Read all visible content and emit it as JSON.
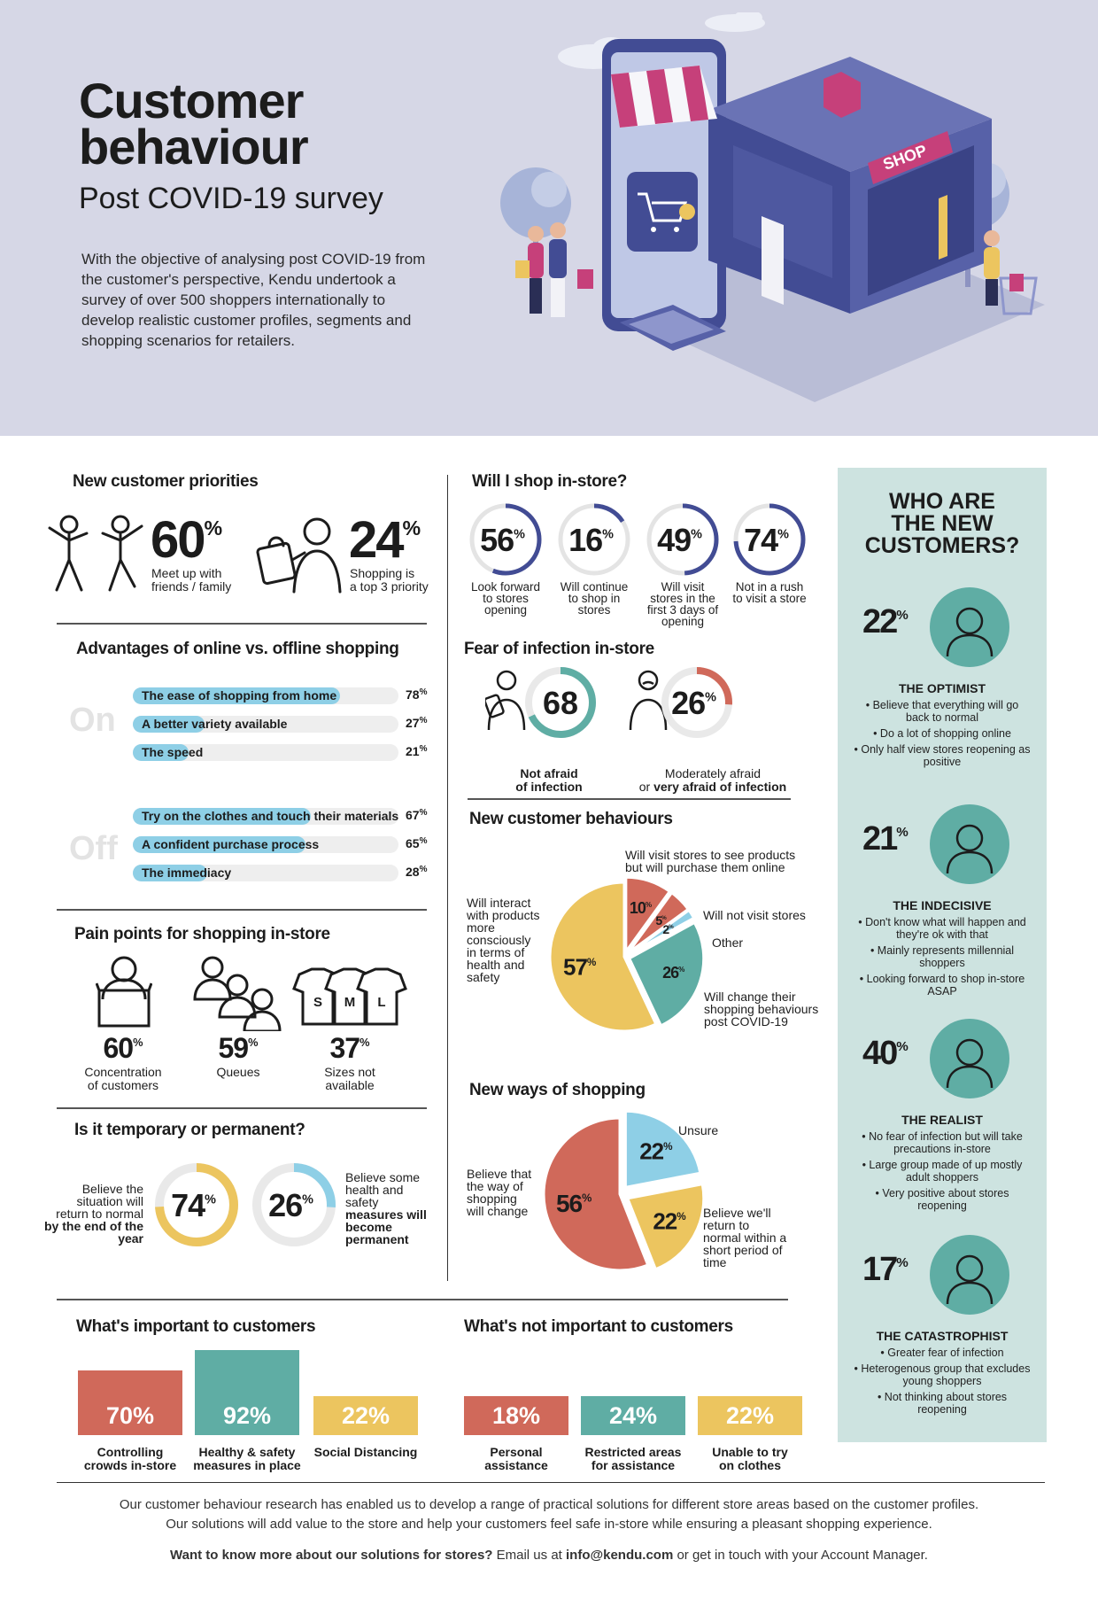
{
  "header": {
    "title_line1": "Customer",
    "title_line2": "behaviour",
    "subtitle": "Post COVID-19 survey",
    "intro": "With the objective of analysing post COVID-19 from the customer's perspective, Kendu undertook a survey of over 500 shoppers internationally to develop realistic customer profiles, segments and shopping scenarios for retailers.",
    "shop_sign": "SHOP"
  },
  "priorities": {
    "title": "New customer priorities",
    "items": [
      {
        "value": "60",
        "label1": "Meet up with",
        "label2": "friends / family"
      },
      {
        "value": "24",
        "label1": "Shopping is",
        "label2": "a top 3 priority"
      }
    ]
  },
  "advantages": {
    "title": "Advantages of online vs. offline shopping",
    "on_label": "On",
    "off_label": "Off",
    "online": [
      {
        "label": "The ease of shopping from home",
        "value": 78
      },
      {
        "label": "A better variety available",
        "value": 27
      },
      {
        "label": "The speed",
        "value": 21
      }
    ],
    "offline": [
      {
        "label": "Try on the clothes and touch their materials",
        "value": 67
      },
      {
        "label": "A confident purchase process",
        "value": 65
      },
      {
        "label": "The immediacy",
        "value": 28
      }
    ]
  },
  "pain": {
    "title": "Pain points for shopping in-store",
    "items": [
      {
        "value": "60",
        "label1": "Concentration",
        "label2": "of customers"
      },
      {
        "value": "59",
        "label1": "Queues",
        "label2": ""
      },
      {
        "value": "37",
        "label1": "Sizes not",
        "label2": "available"
      }
    ],
    "sizes": [
      "S",
      "M",
      "L"
    ]
  },
  "temporary": {
    "title": "Is it temporary or permanent?",
    "left": {
      "value": 74,
      "text": [
        "Believe the",
        "situation will",
        "return to normal",
        "by the end of the",
        "year"
      ]
    },
    "right": {
      "value": 26,
      "text": [
        "Believe some",
        "health and",
        "safety",
        "measures will",
        "become",
        "permanent"
      ]
    }
  },
  "instore": {
    "title": "Will I shop in-store?",
    "items": [
      {
        "value": 56,
        "lines": [
          "Look forward",
          "to stores",
          "opening"
        ]
      },
      {
        "value": 16,
        "lines": [
          "Will continue",
          "to shop in",
          "stores"
        ]
      },
      {
        "value": 49,
        "lines": [
          "Will visit",
          "stores in the",
          "first 3 days of",
          "opening"
        ]
      },
      {
        "value": 74,
        "lines": [
          "Not in a rush",
          "to visit a store"
        ]
      }
    ]
  },
  "fear": {
    "title": "Fear of infection in-store",
    "left": {
      "value": 68,
      "line1": "Not afraid",
      "line2": "of infection"
    },
    "right": {
      "value": 26,
      "line1": "Moderately afraid",
      "line2a": "or ",
      "line2b": "very afraid of infection"
    }
  },
  "behaviours": {
    "title": "New customer behaviours",
    "labels": {
      "a": [
        "Will visit stores to see products",
        "but will purchase them online"
      ],
      "b": "Will not visit stores",
      "c": "Other",
      "d": [
        "Will change their",
        "shopping behaviours",
        "post COVID-19"
      ],
      "e": [
        "Will interact",
        "with products",
        "more",
        "consciously",
        "in terms of",
        "health and",
        "safety"
      ]
    }
  },
  "ways": {
    "title": "New ways of shopping",
    "labels": {
      "unsure": "Unsure",
      "normal": [
        "Believe we'll",
        "return to",
        "normal within a",
        "short period of",
        "time"
      ],
      "change": [
        "Believe that",
        "the way of",
        "shopping",
        "will change"
      ]
    }
  },
  "important": {
    "title": "What's important to customers",
    "items": [
      {
        "value": "70%",
        "label1": "Controlling",
        "label2": "crowds in-store"
      },
      {
        "value": "92%",
        "label1": "Healthy & safety",
        "label2": "measures in place"
      },
      {
        "value": "22%",
        "label1": "Social Distancing",
        "label2": ""
      }
    ]
  },
  "not_important": {
    "title": "What's not important to customers",
    "items": [
      {
        "value": "18%",
        "label1": "Personal",
        "label2": "assistance"
      },
      {
        "value": "24%",
        "label1": "Restricted areas",
        "label2": "for assistance"
      },
      {
        "value": "22%",
        "label1": "Unable to try",
        "label2": "on clothes"
      }
    ]
  },
  "sidebar": {
    "title": [
      "WHO ARE",
      "THE NEW",
      "CUSTOMERS?"
    ],
    "profiles": [
      {
        "pct": "22",
        "name": "THE OPTIMIST",
        "points": [
          "• Believe that everything will go back to normal",
          "• Do a lot of shopping online",
          "• Only half view stores reopening as positive"
        ]
      },
      {
        "pct": "21",
        "name": "THE INDECISIVE",
        "points": [
          "• Don't know what will happen and they're ok with that",
          "• Mainly represents millennial shoppers",
          "• Looking forward to shop in-store ASAP"
        ]
      },
      {
        "pct": "40",
        "name": "THE REALIST",
        "points": [
          "• No fear of infection but will take precautions in-store",
          "• Large group made of up mostly adult shoppers",
          "• Very positive about stores reopening"
        ]
      },
      {
        "pct": "17",
        "name": "THE CATASTROPHIST",
        "points": [
          "• Greater fear of infection",
          "• Heterogenous group that excludes young shoppers",
          "• Not thinking about stores reopening"
        ]
      }
    ]
  },
  "footer": {
    "line1": "Our customer behaviour research has enabled us to develop a range of practical solutions for different store areas based on the customer profiles.",
    "line2": "Our solutions will add value to the store and help your customers feel safe in-store while ensuring a pleasant shopping experience.",
    "cta_bold": "Want to know more about our solutions for stores?",
    "cta_mid": " Email us at ",
    "email": "info@kendu.com",
    "cta_end": " or get in touch with your Account Manager."
  },
  "colors": {
    "hero_bg": "#d6d7e6",
    "teal": "#5fada4",
    "coral": "#d0695a",
    "yellow": "#ecc55f",
    "navy": "#424c94",
    "light_blue": "#8ecfe6",
    "sidebar_bg": "#cde3e0"
  },
  "chart_data": [
    {
      "type": "bar",
      "title": "Advantages of online vs. offline shopping",
      "series": [
        {
          "name": "On",
          "categories": [
            "The ease of shopping from home",
            "A better variety available",
            "The speed"
          ],
          "values": [
            78,
            27,
            21
          ]
        },
        {
          "name": "Off",
          "categories": [
            "Try on the clothes and touch their materials",
            "A confident purchase process",
            "The immediacy"
          ],
          "values": [
            67,
            65,
            28
          ]
        }
      ]
    },
    {
      "type": "pie",
      "title": "New customer behaviours",
      "categories": [
        "Will interact with products more consciously in terms of health and safety",
        "Will change their shopping behaviours post COVID-19",
        "Will visit stores to see products but will purchase them online",
        "Will not visit stores",
        "Other"
      ],
      "values": [
        57,
        26,
        10,
        5,
        2
      ]
    },
    {
      "type": "pie",
      "title": "New ways of shopping",
      "categories": [
        "Believe that the way of shopping will change",
        "Unsure",
        "Believe we'll return to normal within a short period of time"
      ],
      "values": [
        56,
        22,
        22
      ]
    },
    {
      "type": "bar",
      "title": "What's important to customers",
      "categories": [
        "Controlling crowds in-store",
        "Healthy & safety measures in place",
        "Social Distancing"
      ],
      "values": [
        70,
        92,
        22
      ]
    },
    {
      "type": "bar",
      "title": "What's not important to customers",
      "categories": [
        "Personal assistance",
        "Restricted areas for assistance",
        "Unable to try on clothes"
      ],
      "values": [
        18,
        24,
        22
      ]
    }
  ]
}
